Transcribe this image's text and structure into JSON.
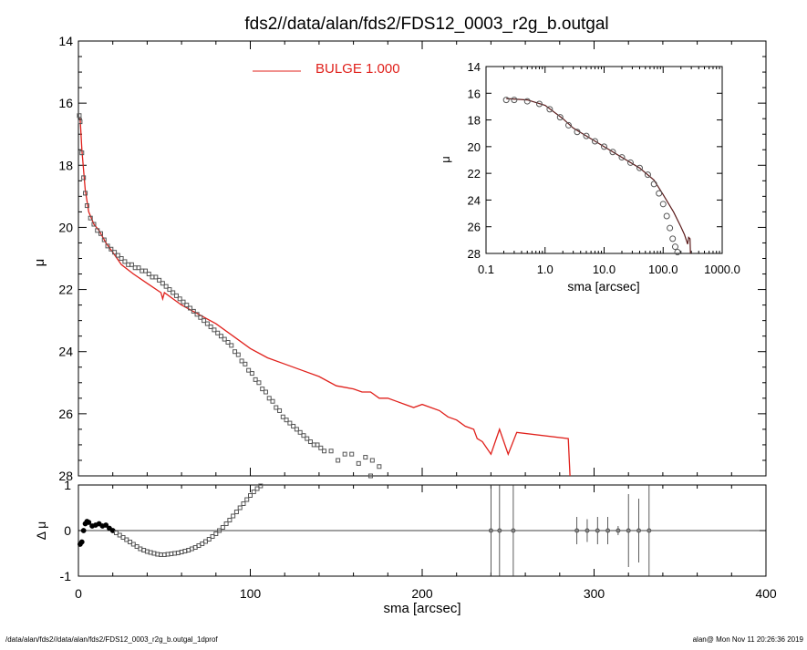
{
  "title": "fds2//data/alan/fds2/FDS12_0003_r2g_b.outgal",
  "footer": {
    "path": "/data/alan/fds2//data/alan/fds2/FDS12_0003_r2g_b.outgal_1dprof",
    "stamp": "alan@  Mon Nov 11 20:26:36 2019"
  },
  "colors": {
    "model": "#e0201b",
    "data": "#555555",
    "axes": "#000000"
  },
  "chart_data": [
    {
      "type": "scatter",
      "role": "main-profile",
      "xlabel": "",
      "ylabel": "μ",
      "xlim": [
        0,
        400
      ],
      "ylim": [
        28,
        14
      ],
      "yticks": [
        14,
        16,
        18,
        20,
        22,
        24,
        26,
        28
      ],
      "legend": {
        "entry": "BULGE  1.000",
        "placement": "top-center"
      },
      "series": [
        {
          "name": "BULGE  1.000",
          "kind": "line",
          "points": [
            [
              1,
              16.5
            ],
            [
              2,
              17.5
            ],
            [
              4,
              18.8
            ],
            [
              6,
              19.5
            ],
            [
              9,
              19.9
            ],
            [
              12,
              20.1
            ],
            [
              16,
              20.5
            ],
            [
              20,
              20.8
            ],
            [
              25,
              21.2
            ],
            [
              32,
              21.5
            ],
            [
              40,
              21.8
            ],
            [
              48,
              22.1
            ],
            [
              49,
              22.3
            ],
            [
              50,
              22.1
            ],
            [
              60,
              22.5
            ],
            [
              70,
              22.8
            ],
            [
              80,
              23.1
            ],
            [
              90,
              23.5
            ],
            [
              100,
              23.9
            ],
            [
              110,
              24.2
            ],
            [
              120,
              24.4
            ],
            [
              130,
              24.6
            ],
            [
              140,
              24.8
            ],
            [
              150,
              25.1
            ],
            [
              160,
              25.2
            ],
            [
              165,
              25.3
            ],
            [
              170,
              25.3
            ],
            [
              175,
              25.5
            ],
            [
              180,
              25.5
            ],
            [
              185,
              25.6
            ],
            [
              190,
              25.7
            ],
            [
              195,
              25.8
            ],
            [
              200,
              25.7
            ],
            [
              205,
              25.8
            ],
            [
              210,
              25.9
            ],
            [
              215,
              26.1
            ],
            [
              220,
              26.2
            ],
            [
              225,
              26.4
            ],
            [
              230,
              26.5
            ],
            [
              232,
              26.8
            ],
            [
              235,
              26.9
            ],
            [
              240,
              27.3
            ],
            [
              245,
              26.5
            ],
            [
              250,
              27.3
            ],
            [
              255,
              26.6
            ],
            [
              285,
              26.8
            ],
            [
              286,
              28.0
            ]
          ]
        },
        {
          "name": "",
          "kind": "markers",
          "points": [
            [
              0.5,
              16.4
            ],
            [
              1,
              16.6
            ],
            [
              2,
              17.6
            ],
            [
              3,
              18.4
            ],
            [
              4,
              18.9
            ],
            [
              5,
              19.3
            ],
            [
              7,
              19.7
            ],
            [
              9,
              19.9
            ],
            [
              11,
              20.1
            ],
            [
              13,
              20.2
            ],
            [
              15,
              20.4
            ],
            [
              17,
              20.6
            ],
            [
              19,
              20.7
            ],
            [
              21,
              20.8
            ],
            [
              23,
              20.9
            ],
            [
              25,
              21.0
            ],
            [
              27,
              21.1
            ],
            [
              29,
              21.2
            ],
            [
              31,
              21.2
            ],
            [
              33,
              21.3
            ],
            [
              35,
              21.3
            ],
            [
              37,
              21.4
            ],
            [
              39,
              21.4
            ],
            [
              41,
              21.5
            ],
            [
              43,
              21.6
            ],
            [
              45,
              21.6
            ],
            [
              47,
              21.7
            ],
            [
              49,
              21.8
            ],
            [
              51,
              21.9
            ],
            [
              53,
              22.0
            ],
            [
              55,
              22.1
            ],
            [
              57,
              22.2
            ],
            [
              59,
              22.3
            ],
            [
              61,
              22.4
            ],
            [
              63,
              22.5
            ],
            [
              65,
              22.6
            ],
            [
              67,
              22.7
            ],
            [
              69,
              22.8
            ],
            [
              71,
              22.9
            ],
            [
              73,
              23.0
            ],
            [
              75,
              23.1
            ],
            [
              77,
              23.2
            ],
            [
              79,
              23.3
            ],
            [
              81,
              23.4
            ],
            [
              83,
              23.5
            ],
            [
              85,
              23.6
            ],
            [
              87,
              23.7
            ],
            [
              89,
              23.8
            ],
            [
              91,
              24.0
            ],
            [
              93,
              24.1
            ],
            [
              95,
              24.3
            ],
            [
              97,
              24.4
            ],
            [
              99,
              24.6
            ],
            [
              101,
              24.7
            ],
            [
              103,
              24.9
            ],
            [
              105,
              25.0
            ],
            [
              107,
              25.2
            ],
            [
              109,
              25.3
            ],
            [
              111,
              25.5
            ],
            [
              113,
              25.6
            ],
            [
              115,
              25.8
            ],
            [
              117,
              25.9
            ],
            [
              119,
              26.1
            ],
            [
              121,
              26.2
            ],
            [
              123,
              26.3
            ],
            [
              125,
              26.4
            ],
            [
              127,
              26.5
            ],
            [
              129,
              26.6
            ],
            [
              131,
              26.7
            ],
            [
              133,
              26.8
            ],
            [
              135,
              26.9
            ],
            [
              137,
              27.0
            ],
            [
              139,
              27.0
            ],
            [
              141,
              27.1
            ],
            [
              143,
              27.2
            ],
            [
              147,
              27.2
            ],
            [
              151,
              27.5
            ],
            [
              155,
              27.3
            ],
            [
              159,
              27.3
            ],
            [
              163,
              27.6
            ],
            [
              167,
              27.4
            ],
            [
              171,
              27.5
            ],
            [
              175,
              27.7
            ],
            [
              170,
              28.0
            ]
          ]
        }
      ]
    },
    {
      "type": "scatter",
      "role": "residual",
      "xlabel": "sma [arcsec]",
      "ylabel": "Δ μ",
      "xlim": [
        0,
        400
      ],
      "ylim": [
        -1,
        1
      ],
      "xticks": [
        0,
        100,
        200,
        300,
        400
      ],
      "yticks": [
        -1,
        0,
        1
      ],
      "series": [
        {
          "name": "",
          "kind": "markers",
          "points": [
            [
              1,
              -0.3
            ],
            [
              2,
              -0.25
            ],
            [
              3,
              0.0
            ],
            [
              4,
              0.15
            ],
            [
              5,
              0.2
            ],
            [
              6,
              0.18
            ],
            [
              8,
              0.1
            ],
            [
              10,
              0.12
            ],
            [
              12,
              0.15
            ],
            [
              14,
              0.1
            ],
            [
              16,
              0.12
            ],
            [
              18,
              0.05
            ],
            [
              20,
              0.0
            ],
            [
              22,
              -0.05
            ],
            [
              24,
              -0.1
            ],
            [
              26,
              -0.15
            ],
            [
              28,
              -0.2
            ],
            [
              30,
              -0.25
            ],
            [
              32,
              -0.3
            ],
            [
              34,
              -0.35
            ],
            [
              36,
              -0.4
            ],
            [
              38,
              -0.43
            ],
            [
              40,
              -0.46
            ],
            [
              42,
              -0.48
            ],
            [
              44,
              -0.5
            ],
            [
              46,
              -0.52
            ],
            [
              48,
              -0.53
            ],
            [
              50,
              -0.53
            ],
            [
              52,
              -0.52
            ],
            [
              54,
              -0.51
            ],
            [
              56,
              -0.5
            ],
            [
              58,
              -0.49
            ],
            [
              60,
              -0.47
            ],
            [
              62,
              -0.45
            ],
            [
              64,
              -0.43
            ],
            [
              66,
              -0.4
            ],
            [
              68,
              -0.37
            ],
            [
              70,
              -0.33
            ],
            [
              72,
              -0.29
            ],
            [
              74,
              -0.24
            ],
            [
              76,
              -0.19
            ],
            [
              78,
              -0.13
            ],
            [
              80,
              -0.07
            ],
            [
              82,
              0.0
            ],
            [
              84,
              0.07
            ],
            [
              86,
              0.15
            ],
            [
              88,
              0.23
            ],
            [
              90,
              0.32
            ],
            [
              92,
              0.41
            ],
            [
              94,
              0.5
            ],
            [
              96,
              0.59
            ],
            [
              98,
              0.68
            ],
            [
              100,
              0.77
            ],
            [
              102,
              0.85
            ],
            [
              104,
              0.92
            ],
            [
              106,
              0.98
            ],
            [
              108,
              1.03
            ]
          ]
        },
        {
          "name": "",
          "kind": "errorbars",
          "points": [
            [
              240,
              0.0,
              2.0
            ],
            [
              245,
              0.0,
              2.0
            ],
            [
              253,
              0.0,
              2.0
            ],
            [
              290,
              0.0,
              0.3
            ],
            [
              296,
              0.0,
              0.25
            ],
            [
              302,
              0.0,
              0.3
            ],
            [
              308,
              0.0,
              0.3
            ],
            [
              314,
              0.0,
              0.1
            ],
            [
              320,
              0.0,
              0.8
            ],
            [
              326,
              0.0,
              0.7
            ],
            [
              332,
              0.0,
              2.0
            ]
          ]
        }
      ]
    },
    {
      "type": "scatter",
      "role": "inset-log",
      "xlabel": "sma [arcsec]",
      "ylabel": "μ",
      "xscale": "log",
      "xlim": [
        0.1,
        1000
      ],
      "ylim": [
        28,
        14
      ],
      "xticks": [
        "0.1",
        "1.0",
        "10.0",
        "100.0",
        "1000.0"
      ],
      "yticks": [
        14,
        16,
        18,
        20,
        22,
        24,
        26,
        28
      ],
      "series": [
        {
          "name": "",
          "kind": "markers",
          "points": [
            [
              0.22,
              16.5
            ],
            [
              0.3,
              16.5
            ],
            [
              0.5,
              16.6
            ],
            [
              0.8,
              16.8
            ],
            [
              1.2,
              17.2
            ],
            [
              1.8,
              17.8
            ],
            [
              2.5,
              18.4
            ],
            [
              3.5,
              18.9
            ],
            [
              5,
              19.2
            ],
            [
              7,
              19.6
            ],
            [
              10,
              20.0
            ],
            [
              14,
              20.4
            ],
            [
              20,
              20.8
            ],
            [
              28,
              21.2
            ],
            [
              40,
              21.6
            ],
            [
              55,
              22.1
            ],
            [
              70,
              22.8
            ],
            [
              85,
              23.5
            ],
            [
              100,
              24.3
            ],
            [
              115,
              25.2
            ],
            [
              130,
              26.1
            ],
            [
              145,
              26.9
            ],
            [
              160,
              27.5
            ],
            [
              175,
              27.9
            ]
          ]
        },
        {
          "name": "",
          "kind": "line",
          "points": [
            [
              0.22,
              16.4
            ],
            [
              0.5,
              16.5
            ],
            [
              1,
              16.9
            ],
            [
              2,
              17.9
            ],
            [
              3,
              18.6
            ],
            [
              5,
              19.2
            ],
            [
              10,
              20.0
            ],
            [
              20,
              20.8
            ],
            [
              40,
              21.6
            ],
            [
              70,
              22.5
            ],
            [
              100,
              23.6
            ],
            [
              150,
              24.9
            ],
            [
              200,
              26.0
            ],
            [
              230,
              26.6
            ],
            [
              260,
              27.3
            ],
            [
              270,
              26.8
            ],
            [
              285,
              26.9
            ],
            [
              290,
              28.0
            ]
          ]
        }
      ]
    }
  ]
}
